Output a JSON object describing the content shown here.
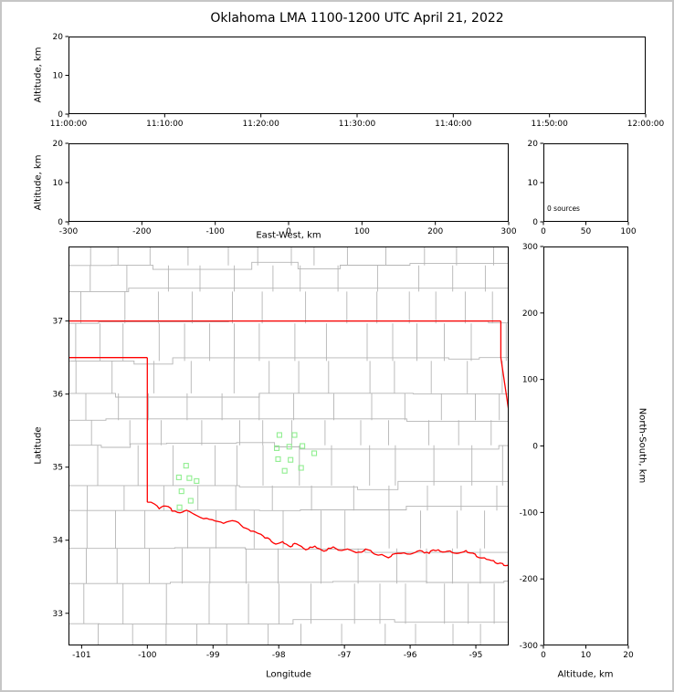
{
  "title": "Oklahoma LMA 1100-1200 UTC April 21, 2022",
  "colors": {
    "state_border": "#ff0000",
    "county_line": "#b5b5b5",
    "station_marker": "#90ee90",
    "axis": "#000000",
    "background": "#ffffff",
    "frame_border": "#c6c6c6"
  },
  "panels": {
    "time_height": {
      "ylabel": "Altitude, km",
      "ylim": [
        0,
        20
      ],
      "yticks": [
        0,
        10,
        20
      ],
      "xtick_labels": [
        "11:00:00",
        "11:10:00",
        "11:20:00",
        "11:30:00",
        "11:40:00",
        "11:50:00",
        "12:00:00"
      ]
    },
    "ew_height": {
      "xlabel": "East-West, km",
      "ylabel": "Altitude, km",
      "xlim": [
        -300,
        300
      ],
      "ylim": [
        0,
        20
      ],
      "xticks": [
        -300,
        -200,
        -100,
        0,
        100,
        200,
        300
      ],
      "yticks": [
        0,
        10,
        20
      ]
    },
    "histogram": {
      "annotation": "0 sources",
      "xlim": [
        0,
        100
      ],
      "ylim": [
        0,
        20
      ],
      "xticks": [
        0,
        50,
        100
      ],
      "yticks": [
        0,
        10,
        20
      ]
    },
    "map": {
      "xlabel": "Longitude",
      "ylabel": "Latitude",
      "lon_range": [
        -101.2,
        -94.5
      ],
      "lat_range": [
        32.56,
        38.02
      ],
      "xticks": [
        -101,
        -100,
        -99,
        -98,
        -97,
        -96,
        -95
      ],
      "yticks": [
        33,
        34,
        35,
        36,
        37
      ]
    },
    "ns_height": {
      "xlabel": "Altitude, km",
      "ylabel": "North-South, km",
      "xlim": [
        0,
        20
      ],
      "ylim": [
        -300,
        300
      ],
      "xticks": [
        0,
        10,
        20
      ],
      "yticks": [
        -300,
        -200,
        -100,
        0,
        100,
        200,
        300
      ]
    }
  },
  "chart_data": {
    "type": "scatter",
    "title": "Oklahoma LMA 1100-1200 UTC April 21, 2022",
    "source_count": 0,
    "time_range": [
      "11:00:00",
      "12:00:00"
    ],
    "lma_stations_lonlat": [
      [
        -97.99,
        35.44
      ],
      [
        -97.76,
        35.44
      ],
      [
        -98.03,
        35.26
      ],
      [
        -97.84,
        35.28
      ],
      [
        -97.64,
        35.29
      ],
      [
        -98.01,
        35.11
      ],
      [
        -97.82,
        35.1
      ],
      [
        -97.91,
        34.95
      ],
      [
        -97.66,
        34.99
      ],
      [
        -97.46,
        35.19
      ],
      [
        -99.41,
        35.02
      ],
      [
        -99.52,
        34.86
      ],
      [
        -99.36,
        34.85
      ],
      [
        -99.25,
        34.81
      ],
      [
        -99.48,
        34.67
      ],
      [
        -99.34,
        34.54
      ],
      [
        -99.51,
        34.45
      ]
    ],
    "oklahoma_boundary": {
      "north": [
        [
          -101.2,
          37.0
        ],
        [
          -94.62,
          37.0
        ]
      ],
      "east": [
        [
          -94.62,
          37.0
        ],
        [
          -94.62,
          36.5
        ],
        [
          -94.43,
          35.35
        ]
      ],
      "panhandle_south": [
        [
          -101.2,
          36.5
        ],
        [
          -100.0,
          36.5
        ]
      ],
      "west": [
        [
          -100.0,
          36.5
        ],
        [
          -100.0,
          34.52
        ]
      ],
      "red_river": [
        [
          -100.0,
          34.52
        ],
        [
          -99.82,
          34.43
        ],
        [
          -99.68,
          34.46
        ],
        [
          -99.54,
          34.38
        ],
        [
          -99.4,
          34.41
        ],
        [
          -99.19,
          34.31
        ],
        [
          -99.01,
          34.28
        ],
        [
          -98.84,
          34.23
        ],
        [
          -98.66,
          34.26
        ],
        [
          -98.49,
          34.16
        ],
        [
          -98.35,
          34.11
        ],
        [
          -98.21,
          34.03
        ],
        [
          -98.08,
          33.96
        ],
        [
          -97.94,
          33.98
        ],
        [
          -97.82,
          33.91
        ],
        [
          -97.73,
          33.95
        ],
        [
          -97.59,
          33.87
        ],
        [
          -97.45,
          33.92
        ],
        [
          -97.31,
          33.85
        ],
        [
          -97.17,
          33.91
        ],
        [
          -97.0,
          33.87
        ],
        [
          -96.82,
          33.83
        ],
        [
          -96.68,
          33.88
        ],
        [
          -96.54,
          33.81
        ],
        [
          -96.33,
          33.76
        ],
        [
          -96.19,
          33.82
        ],
        [
          -96.0,
          33.81
        ],
        [
          -95.85,
          33.86
        ],
        [
          -95.71,
          33.82
        ],
        [
          -95.57,
          33.87
        ],
        [
          -95.43,
          33.85
        ],
        [
          -95.29,
          33.82
        ],
        [
          -95.15,
          33.86
        ],
        [
          -95.01,
          33.81
        ],
        [
          -94.87,
          33.76
        ],
        [
          -94.73,
          33.72
        ],
        [
          -94.59,
          33.68
        ],
        [
          -94.49,
          33.66
        ]
      ]
    }
  }
}
